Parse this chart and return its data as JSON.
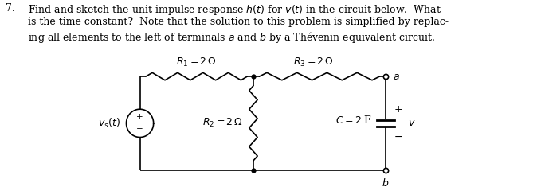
{
  "title_number": "7.",
  "problem_text_line1": "Find and sketch the unit impulse response $h(t)$ for $v(t)$ in the circuit below.  What",
  "problem_text_line2": "is the time constant?  Note that the solution to this problem is simplified by replac-",
  "problem_text_line3": "ing all elements to the left of terminals $a$ and $b$ by a Thévenin equivalent circuit.",
  "R1_label": "$R_1 = 2\\,\\Omega$",
  "R2_label": "$R_2 = 2\\,\\Omega$",
  "R3_label": "$R_3 = 2\\,\\Omega$",
  "C_label": "$C = 2$ F",
  "vs_label": "$v_s(t)$",
  "v_label": "$v$",
  "a_label": "$a$",
  "b_label": "$b$",
  "bg_color": "#ffffff",
  "line_color": "#000000",
  "font_size_text": 9.0,
  "font_size_labels": 9.0,
  "TLx": 1.85,
  "TLy": 1.42,
  "TMx": 3.35,
  "TMy": 1.42,
  "TRx": 5.1,
  "TRy": 1.42,
  "BLx": 1.85,
  "BLy": 0.22,
  "BMx": 3.35,
  "BMy": 0.22,
  "BRx": 5.1,
  "BRy": 0.22,
  "src_r": 0.18
}
